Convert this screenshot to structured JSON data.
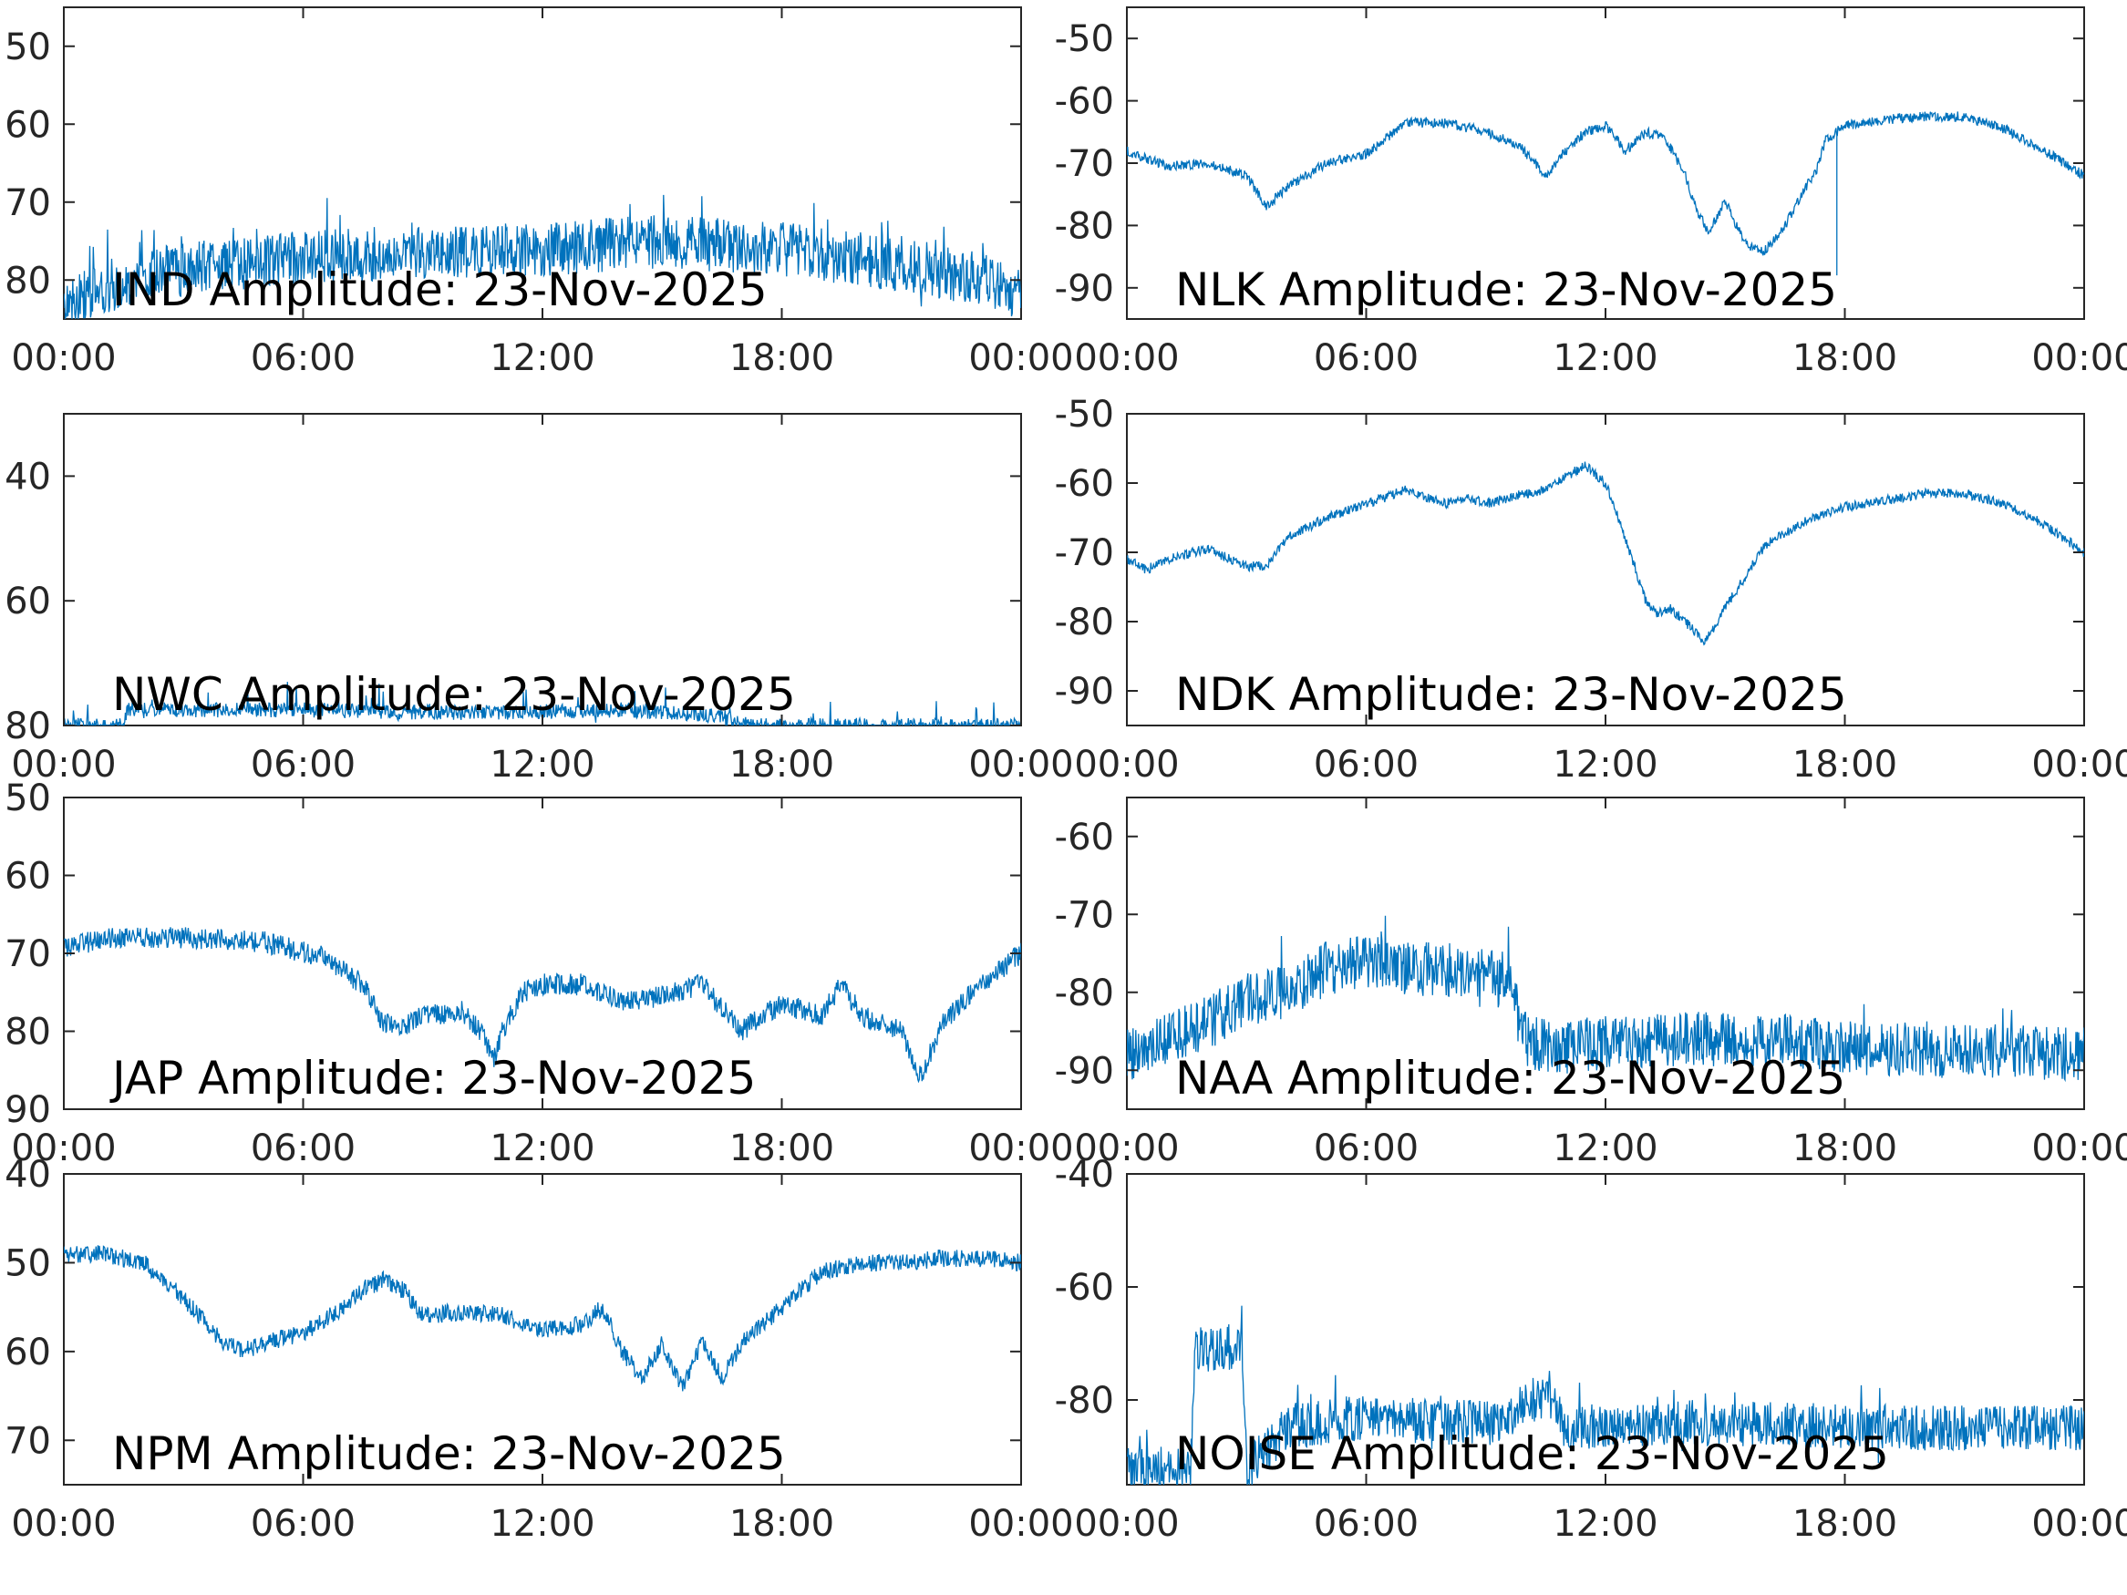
{
  "figure": {
    "background": "#ffffff",
    "line_color": "#0072BD",
    "axis_color": "#262626"
  },
  "chart_data": [
    {
      "type": "line",
      "title": "IND Amplitude: 23-Nov-2025",
      "xlabel": "",
      "ylabel": "",
      "xlim": [
        "00:00",
        "24:00"
      ],
      "xticks": [
        "00:00",
        "06:00",
        "12:00",
        "18:00",
        "00:00"
      ],
      "ylim": [
        -85,
        -45
      ],
      "yticks": [
        -50,
        -60,
        -70,
        -80
      ],
      "ytick_labels": [
        "50",
        "60",
        "70",
        "80"
      ],
      "grid": false,
      "noise": 3.5,
      "spikes": 4,
      "series": [
        {
          "x_hours": [
            0,
            1,
            3,
            6,
            9,
            12,
            15,
            18,
            21,
            23,
            24
          ],
          "values": [
            -83,
            -81,
            -78.5,
            -77,
            -76.5,
            -76,
            -75,
            -76,
            -78,
            -80,
            -82
          ]
        }
      ]
    },
    {
      "type": "line",
      "title": "NLK Amplitude: 23-Nov-2025",
      "xlabel": "",
      "ylabel": "",
      "xlim": [
        "00:00",
        "24:00"
      ],
      "xticks": [
        "00:00",
        "06:00",
        "12:00",
        "18:00",
        "00:00"
      ],
      "ylim": [
        -95,
        -45
      ],
      "yticks": [
        -50,
        -60,
        -70,
        -80,
        -90
      ],
      "ytick_labels": [
        "-50",
        "-60",
        "-70",
        "-80",
        "-90"
      ],
      "grid": false,
      "noise": 0.8,
      "spikes": 0,
      "series": [
        {
          "x_hours": [
            0,
            1,
            2,
            3,
            3.5,
            4,
            5,
            6,
            6.5,
            7,
            8,
            9,
            9.8,
            10.5,
            11,
            11.5,
            12,
            12.5,
            13,
            13.5,
            14,
            14.3,
            14.6,
            15,
            15.5,
            16,
            16.5,
            17,
            17.3,
            17.5,
            18,
            19,
            20,
            21,
            22,
            23,
            24
          ],
          "values": [
            -68,
            -70.5,
            -70,
            -72,
            -77,
            -74,
            -70,
            -68.5,
            -66,
            -63.5,
            -63.5,
            -65,
            -67,
            -72,
            -68,
            -65,
            -64,
            -68,
            -65,
            -66,
            -72,
            -78,
            -81,
            -76,
            -83,
            -84,
            -80,
            -74,
            -71,
            -66.5,
            -64,
            -63,
            -62.5,
            -62.5,
            -64.5,
            -68,
            -72
          ]
        }
      ],
      "annotations": [
        {
          "type": "dropout",
          "x_hour": 17.8,
          "to_value": -88
        }
      ]
    },
    {
      "type": "line",
      "title": "NWC Amplitude: 23-Nov-2025",
      "xlabel": "",
      "ylabel": "",
      "xlim": [
        "00:00",
        "24:00"
      ],
      "xticks": [
        "00:00",
        "06:00",
        "12:00",
        "18:00",
        "00:00"
      ],
      "ylim": [
        -80,
        -30
      ],
      "yticks": [
        -40,
        -60,
        -80
      ],
      "ytick_labels": [
        "40",
        "60",
        "80"
      ],
      "grid": false,
      "noise": 1.2,
      "spikes": 3,
      "series": [
        {
          "x_hours": [
            0,
            1.5,
            1.6,
            6,
            10,
            14,
            16.5,
            17,
            24
          ],
          "values": [
            -80,
            -80,
            -77.5,
            -77.5,
            -78,
            -77.5,
            -78.5,
            -80,
            -80
          ]
        }
      ]
    },
    {
      "type": "line",
      "title": "NDK Amplitude: 23-Nov-2025",
      "xlabel": "",
      "ylabel": "",
      "xlim": [
        "00:00",
        "24:00"
      ],
      "xticks": [
        "00:00",
        "06:00",
        "12:00",
        "18:00",
        "00:00"
      ],
      "ylim": [
        -95,
        -50
      ],
      "yticks": [
        -50,
        -60,
        -70,
        -80,
        -90
      ],
      "ytick_labels": [
        "-50",
        "-60",
        "-70",
        "-80",
        "-90"
      ],
      "grid": false,
      "noise": 0.7,
      "spikes": 0,
      "series": [
        {
          "x_hours": [
            0,
            0.5,
            1,
            2,
            3,
            3.5,
            4,
            5,
            6,
            7,
            7.5,
            8,
            8.5,
            9,
            10,
            10.5,
            11,
            11.5,
            12,
            12.5,
            13,
            13.3,
            13.6,
            14,
            14.5,
            15,
            16,
            17,
            18,
            20,
            21,
            22,
            23,
            24
          ],
          "values": [
            -71,
            -72.5,
            -71,
            -69.5,
            -72,
            -72,
            -68,
            -65,
            -63,
            -61,
            -62,
            -63,
            -62,
            -63,
            -61.5,
            -61,
            -59,
            -57.5,
            -60,
            -68,
            -77,
            -79,
            -78,
            -80,
            -83,
            -78,
            -69,
            -65.5,
            -63.5,
            -61.5,
            -61.5,
            -63,
            -66,
            -70
          ]
        }
      ]
    },
    {
      "type": "line",
      "title": "JAP Amplitude: 23-Nov-2025",
      "xlabel": "",
      "ylabel": "",
      "xlim": [
        "00:00",
        "24:00"
      ],
      "xticks": [
        "00:00",
        "06:00",
        "12:00",
        "18:00",
        "00:00"
      ],
      "ylim": [
        -90,
        -50
      ],
      "yticks": [
        -50,
        -60,
        -70,
        -80,
        -90
      ],
      "ytick_labels": [
        "50",
        "60",
        "70",
        "80",
        "90"
      ],
      "grid": false,
      "noise": 1.4,
      "spikes": 0,
      "series": [
        {
          "x_hours": [
            0,
            1,
            3,
            5,
            6.5,
            7.5,
            8,
            8.5,
            9,
            10,
            10.5,
            10.8,
            11,
            11.5,
            12,
            13,
            14,
            15,
            16,
            16.5,
            17,
            17.5,
            18,
            19,
            19.5,
            20,
            21,
            21.5,
            22,
            23,
            24
          ],
          "values": [
            -69.5,
            -68,
            -68,
            -68.5,
            -70.5,
            -74,
            -79,
            -79.5,
            -78,
            -77.5,
            -80.5,
            -83.5,
            -80,
            -75,
            -74,
            -74,
            -76,
            -75.5,
            -74,
            -77,
            -80,
            -78,
            -76.5,
            -78,
            -74,
            -78,
            -80,
            -86,
            -79,
            -74,
            -70
          ]
        }
      ]
    },
    {
      "type": "line",
      "title": "NAA Amplitude: 23-Nov-2025",
      "xlabel": "",
      "ylabel": "",
      "xlim": [
        "00:00",
        "24:00"
      ],
      "xticks": [
        "00:00",
        "06:00",
        "12:00",
        "18:00",
        "00:00"
      ],
      "ylim": [
        -95,
        -55
      ],
      "yticks": [
        -60,
        -70,
        -80,
        -90
      ],
      "ytick_labels": [
        "-60",
        "-70",
        "-80",
        "-90"
      ],
      "grid": false,
      "noise": 3.5,
      "spikes": 3,
      "series": [
        {
          "x_hours": [
            0,
            2,
            3,
            4,
            5,
            6,
            7,
            8,
            9,
            9.5,
            10,
            10.5,
            11,
            12,
            14,
            16,
            18,
            20,
            22,
            24
          ],
          "values": [
            -88,
            -84,
            -81,
            -80,
            -77,
            -76,
            -77,
            -77,
            -78,
            -78,
            -86,
            -87,
            -87,
            -86.5,
            -86,
            -86,
            -87,
            -87.5,
            -87.5,
            -88
          ]
        }
      ]
    },
    {
      "type": "line",
      "title": "NPM Amplitude: 23-Nov-2025",
      "xlabel": "",
      "ylabel": "",
      "xlim": [
        "00:00",
        "24:00"
      ],
      "xticks": [
        "00:00",
        "06:00",
        "12:00",
        "18:00",
        "00:00"
      ],
      "ylim": [
        -75,
        -40
      ],
      "yticks": [
        -40,
        -50,
        -60,
        -70
      ],
      "ytick_labels": [
        "40",
        "50",
        "60",
        "70"
      ],
      "grid": false,
      "noise": 1.0,
      "spikes": 0,
      "series": [
        {
          "x_hours": [
            0,
            1,
            2,
            3,
            4,
            4.5,
            5,
            6,
            7,
            7.5,
            8,
            8.5,
            9,
            10,
            11,
            12,
            13,
            13.5,
            14,
            14.5,
            15,
            15.5,
            16,
            16.5,
            17,
            18,
            19,
            20,
            21,
            22,
            23,
            24
          ],
          "values": [
            -49,
            -49,
            -50,
            -54,
            -59,
            -60,
            -59,
            -58,
            -55,
            -53,
            -52,
            -53,
            -56,
            -55.5,
            -56,
            -57.5,
            -57,
            -55,
            -60,
            -63,
            -59,
            -64,
            -59,
            -63,
            -59,
            -55,
            -51,
            -50,
            -50,
            -49.5,
            -49.5,
            -50
          ]
        }
      ]
    },
    {
      "type": "line",
      "title": "NOISE Amplitude: 23-Nov-2025",
      "xlabel": "",
      "ylabel": "",
      "xlim": [
        "00:00",
        "24:00"
      ],
      "xticks": [
        "00:00",
        "06:00",
        "12:00",
        "18:00",
        "00:00"
      ],
      "ylim": [
        -95,
        -40
      ],
      "yticks": [
        -40,
        -60,
        -80
      ],
      "ytick_labels": [
        "-40",
        "-60",
        "-80"
      ],
      "grid": false,
      "noise": 4.0,
      "spikes": 4,
      "series": [
        {
          "x_hours": [
            0,
            1.6,
            1.7,
            2.9,
            3.0,
            4,
            6,
            8,
            9.5,
            10.0,
            10.7,
            11.0,
            14,
            17,
            20,
            24
          ],
          "values": [
            -92,
            -92,
            -71,
            -71,
            -92,
            -85,
            -83,
            -84,
            -84,
            -80,
            -80,
            -85,
            -84,
            -84.5,
            -85,
            -85
          ]
        }
      ]
    }
  ]
}
